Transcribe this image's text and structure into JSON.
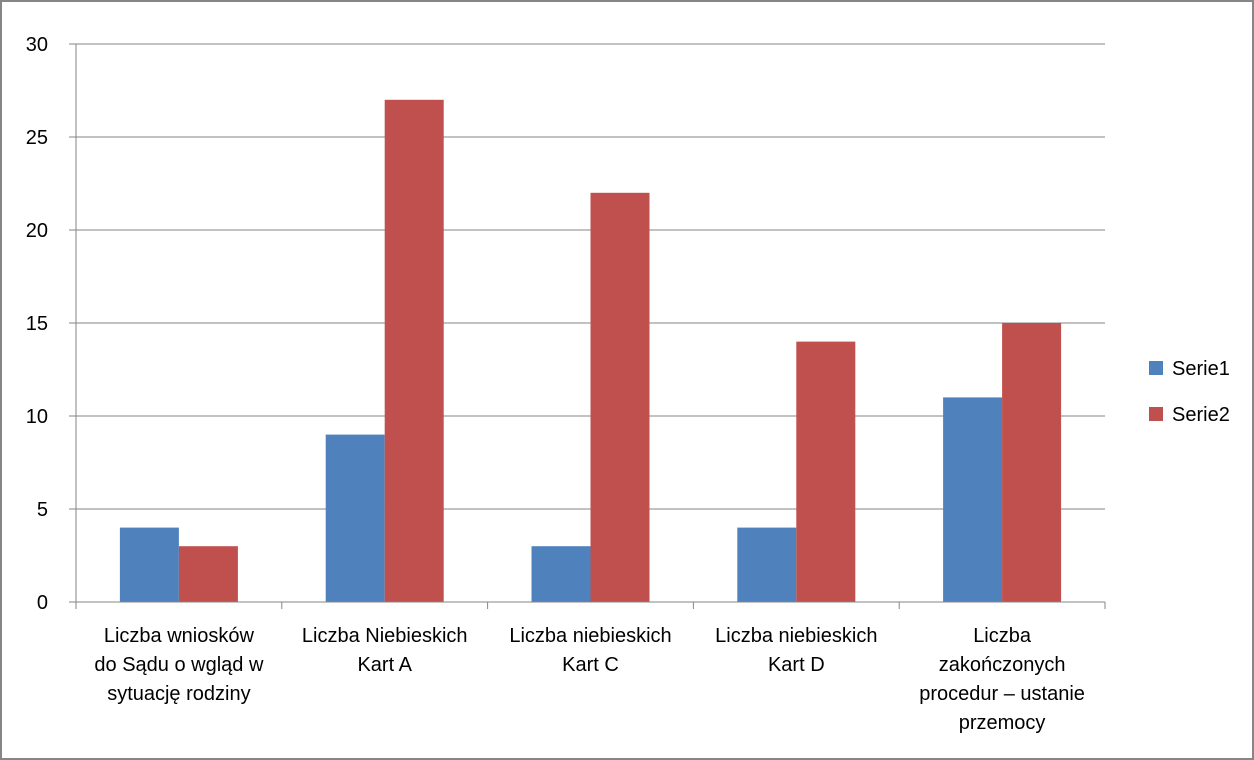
{
  "chart_data": {
    "type": "bar",
    "categories": [
      [
        "Liczba wniosków",
        "do Sądu o wgląd w",
        "sytuację rodziny"
      ],
      [
        "Liczba Niebieskich",
        "Kart A"
      ],
      [
        "Liczba niebieskich",
        "Kart C"
      ],
      [
        "Liczba niebieskich",
        "Kart D"
      ],
      [
        "Liczba",
        "zakończonych",
        "procedur – ustanie",
        "przemocy"
      ]
    ],
    "series": [
      {
        "name": "Serie1",
        "color": "#4f81bd",
        "values": [
          4,
          9,
          3,
          4,
          11
        ]
      },
      {
        "name": "Serie2",
        "color": "#c0504d",
        "values": [
          3,
          27,
          22,
          14,
          15
        ]
      }
    ],
    "ylim": [
      0,
      30
    ],
    "yticks": [
      0,
      5,
      10,
      15,
      20,
      25,
      30
    ],
    "grid": true,
    "legend": "right",
    "title": "",
    "xlabel": "",
    "ylabel": ""
  }
}
